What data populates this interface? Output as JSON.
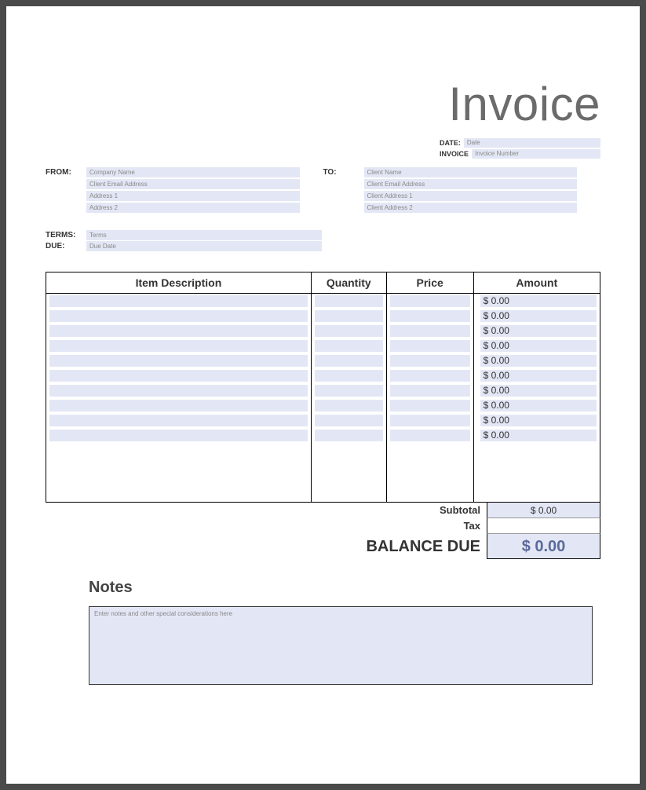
{
  "title": "Invoice",
  "meta": {
    "date_label": "DATE:",
    "date_value": "Date",
    "invoice_label": "INVOICE",
    "invoice_value": "Invoice Number"
  },
  "from": {
    "label": "FROM:",
    "fields": [
      "Company Name",
      "Client Email Address",
      "Address 1",
      "Address 2"
    ]
  },
  "to": {
    "label": "TO:",
    "fields": [
      "Client Name",
      "Client Email Address",
      "Client Address 1",
      "Client Address 2"
    ]
  },
  "terms": {
    "terms_label": "TERMS:",
    "terms_value": "Terms",
    "due_label": "DUE:",
    "due_value": "Due Date"
  },
  "table": {
    "headers": [
      "Item Description",
      "Quantity",
      "Price",
      "Amount"
    ],
    "rows": [
      {
        "desc": "",
        "qty": "",
        "price": "",
        "amount": "$ 0.00"
      },
      {
        "desc": "",
        "qty": "",
        "price": "",
        "amount": "$ 0.00"
      },
      {
        "desc": "",
        "qty": "",
        "price": "",
        "amount": "$ 0.00"
      },
      {
        "desc": "",
        "qty": "",
        "price": "",
        "amount": "$ 0.00"
      },
      {
        "desc": "",
        "qty": "",
        "price": "",
        "amount": "$ 0.00"
      },
      {
        "desc": "",
        "qty": "",
        "price": "",
        "amount": "$ 0.00"
      },
      {
        "desc": "",
        "qty": "",
        "price": "",
        "amount": "$ 0.00"
      },
      {
        "desc": "",
        "qty": "",
        "price": "",
        "amount": "$ 0.00"
      },
      {
        "desc": "",
        "qty": "",
        "price": "",
        "amount": "$ 0.00"
      },
      {
        "desc": "",
        "qty": "",
        "price": "",
        "amount": "$ 0.00"
      }
    ],
    "blank_rows": 4
  },
  "totals": {
    "subtotal_label": "Subtotal",
    "subtotal_value": "$ 0.00",
    "tax_label": "Tax",
    "tax_value": "",
    "balance_label": "BALANCE DUE",
    "balance_value": "$ 0.00"
  },
  "notes": {
    "title": "Notes",
    "placeholder": "Enter notes and other special considerations here"
  },
  "colors": {
    "page_bg": "#ffffff",
    "viewer_bg": "#4a4a4a",
    "field_bg": "#e3e7f5",
    "title_color": "#6b6b6b",
    "balance_color": "#5a6a9a",
    "border": "#000000"
  }
}
